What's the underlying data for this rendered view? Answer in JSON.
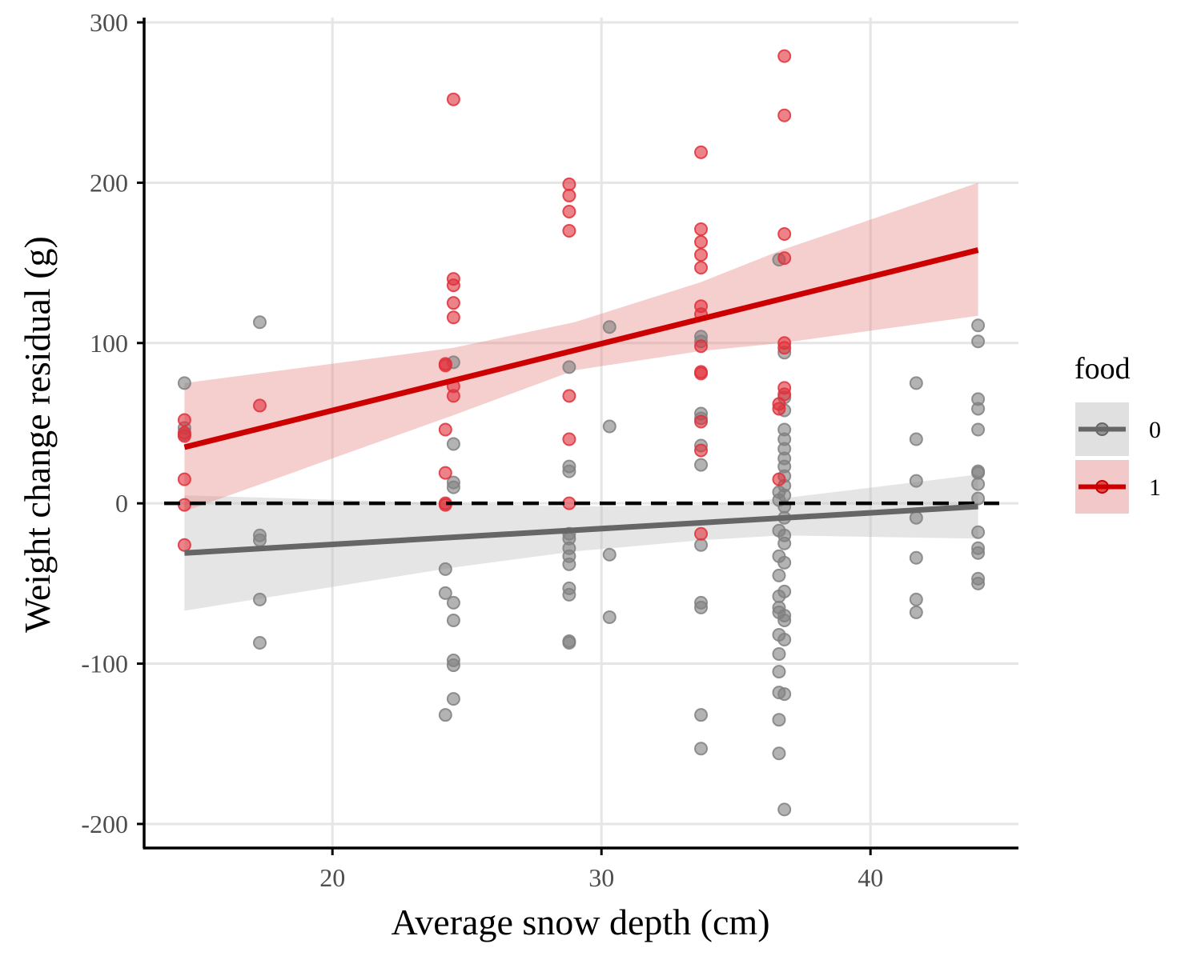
{
  "chart_data": {
    "type": "scatter",
    "xlabel": "Average snow depth (cm)",
    "ylabel": "Weight change residual (g)",
    "xlim": [
      13,
      45.5
    ],
    "ylim": [
      -215,
      303
    ],
    "x_ticks": [
      20,
      30,
      40
    ],
    "y_ticks": [
      -200,
      -100,
      0,
      100,
      200,
      300
    ],
    "x_tick_labels": [
      "20",
      "30",
      "40"
    ],
    "y_tick_labels": [
      "-200",
      "-100",
      "0",
      "100",
      "200",
      "300"
    ],
    "grid": true,
    "reference_line": {
      "y": 0,
      "style": "dashed",
      "color": "#000000"
    },
    "legend": {
      "title": "food",
      "position": "right",
      "entries": [
        {
          "name": "0",
          "color": "#666666",
          "band": "#e0e0e0"
        },
        {
          "name": "1",
          "color": "#cc0000",
          "band": "#f2c8c8"
        }
      ]
    },
    "series": [
      {
        "name": "0",
        "point_color": "#808080",
        "line_color": "#666666",
        "band_color": "#bdbdbd",
        "trend": {
          "x": [
            14.5,
            44
          ],
          "y": [
            -31,
            -2
          ]
        },
        "band": {
          "x": [
            14.5,
            24.5,
            29,
            33.7,
            36.7,
            44
          ],
          "upper": [
            5,
            0,
            -2,
            -1,
            3,
            18
          ],
          "lower": [
            -67,
            -40,
            -30,
            -23,
            -20,
            -22
          ]
        },
        "points": [
          [
            14.5,
            75
          ],
          [
            14.5,
            47
          ],
          [
            14.5,
            43
          ],
          [
            17.3,
            113
          ],
          [
            17.3,
            -20
          ],
          [
            17.3,
            -23
          ],
          [
            17.3,
            -60
          ],
          [
            17.3,
            -87
          ],
          [
            24.2,
            -41
          ],
          [
            24.2,
            -56
          ],
          [
            24.2,
            -132
          ],
          [
            24.5,
            88
          ],
          [
            24.5,
            37
          ],
          [
            24.5,
            13
          ],
          [
            24.5,
            10
          ],
          [
            24.5,
            -62
          ],
          [
            24.5,
            -73
          ],
          [
            24.5,
            -98
          ],
          [
            24.5,
            -101
          ],
          [
            24.5,
            -122
          ],
          [
            28.8,
            85
          ],
          [
            28.8,
            23
          ],
          [
            28.8,
            20
          ],
          [
            28.8,
            -19
          ],
          [
            28.8,
            -22
          ],
          [
            28.8,
            -28
          ],
          [
            28.8,
            -33
          ],
          [
            28.8,
            -38
          ],
          [
            28.8,
            -53
          ],
          [
            28.8,
            -57
          ],
          [
            28.8,
            -86
          ],
          [
            28.8,
            -87
          ],
          [
            30.3,
            110
          ],
          [
            30.3,
            48
          ],
          [
            30.3,
            -32
          ],
          [
            30.3,
            -71
          ],
          [
            33.7,
            104
          ],
          [
            33.7,
            101
          ],
          [
            33.7,
            56
          ],
          [
            33.7,
            53
          ],
          [
            33.7,
            36
          ],
          [
            33.7,
            24
          ],
          [
            33.7,
            -26
          ],
          [
            33.7,
            -62
          ],
          [
            33.7,
            -65
          ],
          [
            33.7,
            -132
          ],
          [
            33.7,
            -153
          ],
          [
            36.6,
            152
          ],
          [
            36.6,
            7
          ],
          [
            36.6,
            2
          ],
          [
            36.6,
            -17
          ],
          [
            36.6,
            -33
          ],
          [
            36.6,
            -45
          ],
          [
            36.6,
            -58
          ],
          [
            36.6,
            -65
          ],
          [
            36.6,
            -68
          ],
          [
            36.6,
            -82
          ],
          [
            36.6,
            -94
          ],
          [
            36.6,
            -105
          ],
          [
            36.6,
            -118
          ],
          [
            36.6,
            -135
          ],
          [
            36.6,
            -156
          ],
          [
            36.8,
            94
          ],
          [
            36.8,
            66
          ],
          [
            36.8,
            58
          ],
          [
            36.8,
            46
          ],
          [
            36.8,
            40
          ],
          [
            36.8,
            34
          ],
          [
            36.8,
            28
          ],
          [
            36.8,
            23
          ],
          [
            36.8,
            17
          ],
          [
            36.8,
            11
          ],
          [
            36.8,
            5
          ],
          [
            36.8,
            -2
          ],
          [
            36.8,
            -9
          ],
          [
            36.8,
            -20
          ],
          [
            36.8,
            -25
          ],
          [
            36.8,
            -37
          ],
          [
            36.8,
            -55
          ],
          [
            36.8,
            -70
          ],
          [
            36.8,
            -73
          ],
          [
            36.8,
            -85
          ],
          [
            36.8,
            -119
          ],
          [
            36.8,
            -191
          ],
          [
            41.7,
            75
          ],
          [
            41.7,
            40
          ],
          [
            41.7,
            14
          ],
          [
            41.7,
            -9
          ],
          [
            41.7,
            -34
          ],
          [
            41.7,
            -60
          ],
          [
            41.7,
            -68
          ],
          [
            44,
            111
          ],
          [
            44,
            101
          ],
          [
            44,
            65
          ],
          [
            44,
            59
          ],
          [
            44,
            46
          ],
          [
            44,
            20
          ],
          [
            44,
            19
          ],
          [
            44,
            12
          ],
          [
            44,
            3
          ],
          [
            44,
            -18
          ],
          [
            44,
            -28
          ],
          [
            44,
            -31
          ],
          [
            44,
            -47
          ],
          [
            44,
            -50
          ]
        ]
      },
      {
        "name": "1",
        "point_color": "#e0303a",
        "line_color": "#cc0000",
        "band_color": "#e58585",
        "trend": {
          "x": [
            14.5,
            44
          ],
          "y": [
            35,
            158
          ]
        },
        "band": {
          "x": [
            14.5,
            24.5,
            29,
            33.7,
            36.7,
            44
          ],
          "upper": [
            75,
            97,
            113,
            138,
            158,
            200
          ],
          "lower": [
            -5,
            55,
            83,
            95,
            100,
            117
          ]
        },
        "points": [
          [
            14.5,
            52
          ],
          [
            14.5,
            44
          ],
          [
            14.5,
            42
          ],
          [
            14.5,
            15
          ],
          [
            14.5,
            -1
          ],
          [
            14.5,
            -26
          ],
          [
            17.3,
            61
          ],
          [
            24.2,
            87
          ],
          [
            24.2,
            86
          ],
          [
            24.2,
            46
          ],
          [
            24.2,
            19
          ],
          [
            24.2,
            0
          ],
          [
            24.2,
            -1
          ],
          [
            24.5,
            252
          ],
          [
            24.5,
            140
          ],
          [
            24.5,
            136
          ],
          [
            24.5,
            125
          ],
          [
            24.5,
            116
          ],
          [
            24.5,
            73
          ],
          [
            24.5,
            67
          ],
          [
            28.8,
            199
          ],
          [
            28.8,
            192
          ],
          [
            28.8,
            182
          ],
          [
            28.8,
            170
          ],
          [
            28.8,
            67
          ],
          [
            28.8,
            40
          ],
          [
            28.8,
            0
          ],
          [
            33.7,
            219
          ],
          [
            33.7,
            171
          ],
          [
            33.7,
            163
          ],
          [
            33.7,
            155
          ],
          [
            33.7,
            147
          ],
          [
            33.7,
            123
          ],
          [
            33.7,
            118
          ],
          [
            33.7,
            98
          ],
          [
            33.7,
            82
          ],
          [
            33.7,
            81
          ],
          [
            33.7,
            51
          ],
          [
            33.7,
            33
          ],
          [
            33.7,
            -19
          ],
          [
            36.6,
            62
          ],
          [
            36.6,
            59
          ],
          [
            36.6,
            15
          ],
          [
            36.8,
            279
          ],
          [
            36.8,
            242
          ],
          [
            36.8,
            168
          ],
          [
            36.8,
            153
          ],
          [
            36.8,
            100
          ],
          [
            36.8,
            97
          ],
          [
            36.8,
            72
          ],
          [
            36.8,
            68
          ]
        ]
      }
    ]
  }
}
